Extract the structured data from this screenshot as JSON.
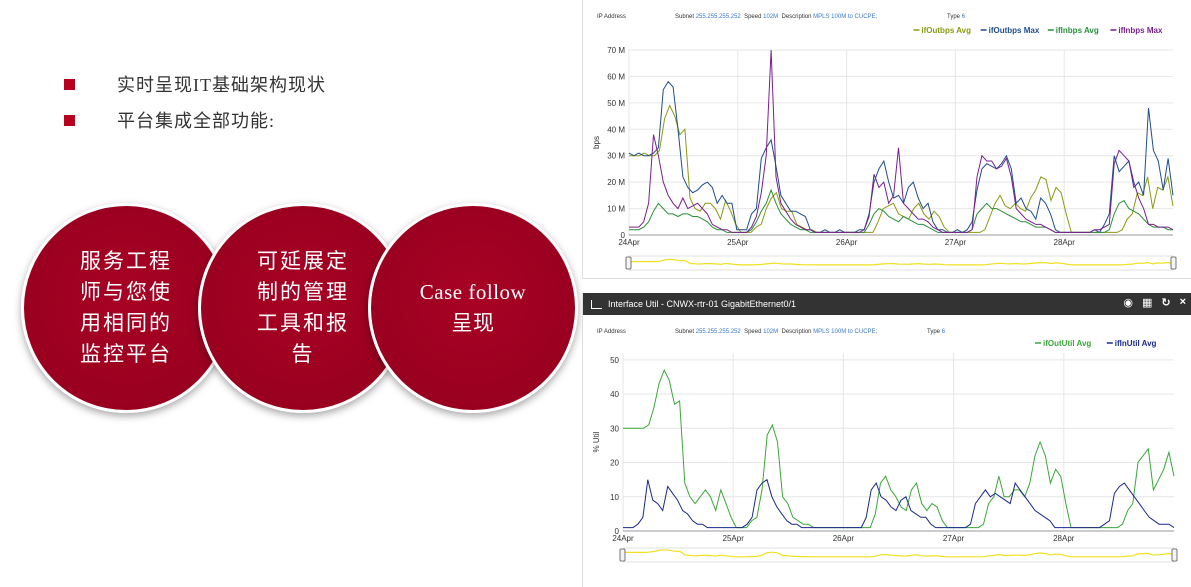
{
  "bullets": [
    "实时呈现IT基础架构现状",
    "平台集成全部功能:"
  ],
  "circles": [
    {
      "text": "服务工程\n师与您使\n用相同的\n监控平台"
    },
    {
      "text": "可延展定\n制的管理\n工具和报\n告"
    },
    {
      "text": "Case follow\n呈现"
    }
  ],
  "panel1": {
    "ip_label": "IP Address",
    "subnet_label": "Subnet",
    "subnet": "255.255.255.252",
    "speed_label": "Speed",
    "speed": "102M",
    "desc_label": "Description",
    "desc": "MPLS 100M to CUCPE;",
    "type_label": "Type",
    "type": "6"
  },
  "panel2": {
    "title": "Interface Util - CNWX-rtr-01 GigabitEthernet0/1",
    "ip_label": "IP Address",
    "subnet_label": "Subnet",
    "subnet": "255.255.255.252",
    "speed_label": "Speed",
    "speed": "102M",
    "desc_label": "Description",
    "desc": "MPLS 100M to CUCPE;",
    "type_label": "Type",
    "type": "6",
    "toolbar_icons": [
      "camera-icon",
      "table-icon",
      "refresh-icon",
      "close-icon"
    ]
  },
  "chart_data": [
    {
      "type": "line",
      "ylabel": "bps",
      "y_ticks": [
        "0",
        "10 M",
        "20 M",
        "30 M",
        "40 M",
        "50 M",
        "60 M",
        "70 M"
      ],
      "ylim": [
        0,
        70
      ],
      "x_ticks": [
        "24Apr",
        "25Apr",
        "26Apr",
        "27Apr",
        "28Apr"
      ],
      "x_tick_pos": [
        0,
        1,
        2,
        3,
        4
      ],
      "xlim": [
        0,
        5
      ],
      "series": [
        {
          "name": "ifOutbps Avg",
          "color": "#8a9a10",
          "values": [
            30,
            30,
            30,
            31,
            30,
            30,
            32,
            44,
            49,
            45,
            38,
            40,
            14,
            10,
            9,
            12,
            12,
            10,
            6,
            13,
            9,
            4,
            1,
            1,
            1,
            3,
            4,
            10,
            14,
            16,
            10,
            9,
            9,
            4,
            3,
            2,
            2,
            1,
            1,
            1,
            1,
            1,
            1,
            1,
            1,
            1,
            1,
            1,
            1,
            5,
            10,
            11,
            12,
            8,
            7,
            6,
            10,
            12,
            8,
            6,
            9,
            7,
            3,
            1,
            1,
            1,
            1,
            1,
            1,
            1,
            2,
            7,
            12,
            15,
            11,
            10,
            12,
            10,
            9,
            14,
            17,
            22,
            21,
            13,
            18,
            16,
            8,
            1,
            1,
            1,
            1,
            1,
            1,
            1,
            1,
            1,
            1,
            2,
            6,
            8,
            16,
            15,
            22,
            10,
            18,
            17,
            22,
            11
          ]
        },
        {
          "name": "ifOutbps Max",
          "color": "#1f4e8c",
          "values": [
            31,
            30,
            31,
            30,
            30,
            31,
            33,
            55,
            58,
            56,
            40,
            22,
            18,
            16,
            17,
            19,
            20,
            18,
            12,
            15,
            12,
            12,
            2,
            2,
            2,
            8,
            10,
            29,
            33,
            36,
            26,
            15,
            12,
            9,
            9,
            8,
            7,
            2,
            1,
            1,
            2,
            1,
            1,
            2,
            1,
            1,
            1,
            2,
            2,
            8,
            20,
            25,
            28,
            20,
            14,
            15,
            12,
            18,
            20,
            14,
            10,
            12,
            5,
            2,
            2,
            1,
            1,
            2,
            1,
            2,
            5,
            17,
            25,
            27,
            26,
            25,
            27,
            30,
            25,
            12,
            14,
            10,
            9,
            6,
            14,
            12,
            8,
            2,
            1,
            1,
            1,
            1,
            1,
            1,
            1,
            2,
            1,
            4,
            8,
            30,
            24,
            26,
            28,
            18,
            20,
            15,
            48,
            32,
            28,
            17,
            29,
            15
          ]
        },
        {
          "name": "ifInbps Avg",
          "color": "#2a8f3a",
          "values": [
            2,
            2,
            2,
            3,
            5,
            9,
            12,
            10,
            8,
            8,
            7,
            8,
            8,
            7,
            7,
            6,
            5,
            3,
            2,
            2,
            1,
            1,
            1,
            1,
            1,
            2,
            5,
            9,
            12,
            17,
            12,
            8,
            6,
            4,
            3,
            2,
            2,
            1,
            1,
            1,
            1,
            1,
            1,
            1,
            1,
            1,
            1,
            1,
            1,
            4,
            8,
            10,
            9,
            7,
            6,
            5,
            7,
            6,
            5,
            4,
            4,
            3,
            2,
            1,
            1,
            1,
            1,
            1,
            1,
            1,
            2,
            8,
            10,
            12,
            10,
            10,
            9,
            8,
            7,
            6,
            5,
            5,
            4,
            3,
            3,
            3,
            2,
            1,
            1,
            1,
            1,
            1,
            1,
            1,
            1,
            1,
            1,
            1,
            2,
            8,
            12,
            13,
            10,
            9,
            8,
            6,
            4,
            3,
            3,
            3,
            2,
            2
          ]
        },
        {
          "name": "ifInbps Max",
          "color": "#7a1f8f",
          "values": [
            3,
            3,
            3,
            5,
            12,
            38,
            30,
            20,
            15,
            12,
            10,
            14,
            10,
            11,
            12,
            10,
            8,
            4,
            3,
            2,
            2,
            1,
            1,
            1,
            1,
            3,
            7,
            16,
            30,
            70,
            22,
            12,
            9,
            6,
            4,
            3,
            2,
            2,
            1,
            1,
            1,
            1,
            1,
            1,
            1,
            1,
            1,
            1,
            2,
            7,
            23,
            18,
            20,
            12,
            15,
            33,
            12,
            10,
            8,
            6,
            6,
            5,
            3,
            2,
            1,
            1,
            1,
            1,
            1,
            1,
            2,
            22,
            30,
            28,
            28,
            25,
            26,
            29,
            22,
            10,
            8,
            6,
            5,
            4,
            4,
            3,
            2,
            1,
            1,
            1,
            1,
            1,
            1,
            1,
            1,
            2,
            2,
            3,
            4,
            27,
            32,
            30,
            28,
            20,
            14,
            10,
            4,
            4,
            3,
            3,
            3,
            2
          ]
        }
      ]
    },
    {
      "type": "line",
      "ylabel": "% Util",
      "y_ticks": [
        "0",
        "10",
        "20",
        "30",
        "40",
        "50"
      ],
      "ylim": [
        0,
        52
      ],
      "x_ticks": [
        "24Apr",
        "25Apr",
        "26Apr",
        "27Apr",
        "28Apr"
      ],
      "x_tick_pos": [
        0,
        1,
        2,
        3,
        4
      ],
      "xlim": [
        0,
        5
      ],
      "series": [
        {
          "name": "ifOutUtil Avg",
          "color": "#3aa83a",
          "values": [
            30,
            30,
            30,
            30,
            30,
            31,
            36,
            43,
            47,
            44,
            37,
            38,
            14,
            10,
            8,
            10,
            12,
            10,
            6,
            12,
            8,
            4,
            1,
            1,
            1,
            3,
            4,
            12,
            28,
            31,
            26,
            10,
            8,
            4,
            3,
            2,
            2,
            1,
            1,
            1,
            1,
            1,
            1,
            1,
            1,
            1,
            1,
            1,
            1,
            5,
            14,
            16,
            12,
            10,
            7,
            6,
            12,
            14,
            8,
            6,
            8,
            7,
            3,
            1,
            1,
            1,
            1,
            1,
            1,
            1,
            2,
            8,
            10,
            16,
            10,
            10,
            12,
            12,
            10,
            14,
            22,
            26,
            22,
            14,
            18,
            16,
            8,
            1,
            1,
            1,
            1,
            1,
            1,
            1,
            1,
            1,
            1,
            2,
            6,
            8,
            20,
            22,
            24,
            12,
            15,
            18,
            23,
            16
          ]
        },
        {
          "name": "ifInUtil Avg",
          "color": "#1a2a8a",
          "values": [
            1,
            1,
            1,
            2,
            4,
            15,
            9,
            8,
            6,
            13,
            11,
            9,
            6,
            5,
            3,
            2,
            2,
            1,
            1,
            1,
            1,
            1,
            1,
            1,
            1,
            2,
            4,
            12,
            14,
            15,
            10,
            7,
            5,
            3,
            2,
            2,
            1,
            1,
            1,
            1,
            1,
            1,
            1,
            1,
            1,
            1,
            1,
            1,
            1,
            4,
            12,
            14,
            10,
            9,
            7,
            6,
            9,
            10,
            6,
            5,
            4,
            4,
            2,
            1,
            1,
            1,
            1,
            1,
            1,
            1,
            2,
            8,
            10,
            12,
            10,
            11,
            10,
            9,
            8,
            14,
            12,
            10,
            8,
            6,
            5,
            4,
            3,
            1,
            1,
            1,
            1,
            1,
            1,
            1,
            1,
            1,
            1,
            2,
            3,
            11,
            13,
            14,
            12,
            10,
            8,
            6,
            4,
            3,
            2,
            2,
            2,
            1
          ]
        }
      ]
    }
  ]
}
